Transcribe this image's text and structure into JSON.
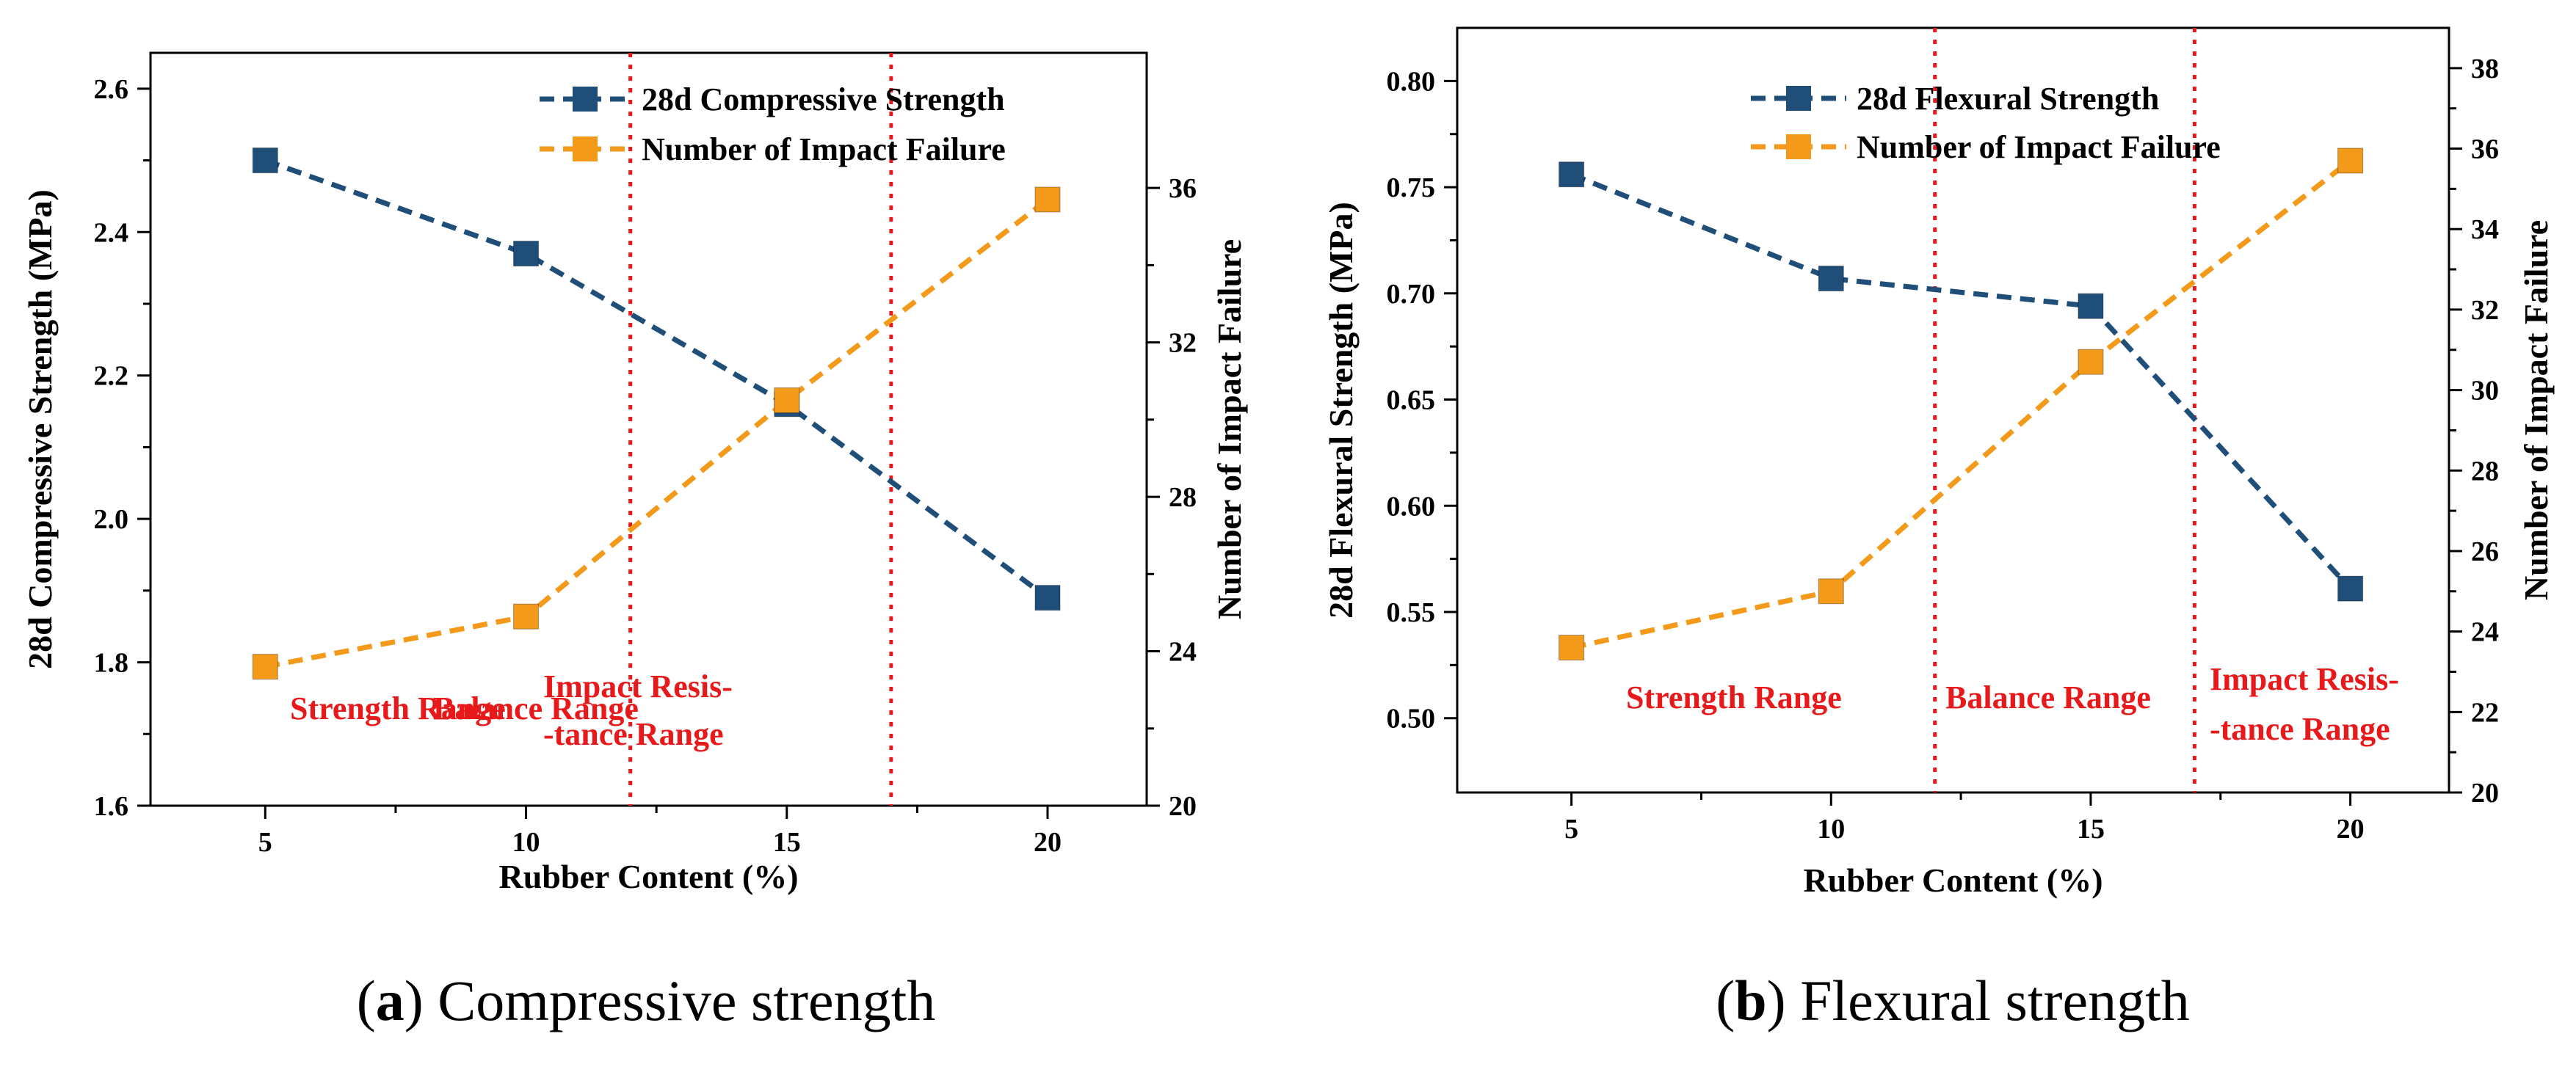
{
  "chart_data": [
    {
      "type": "line",
      "caption_letter": "a",
      "caption_text": "Compressive strength",
      "xlabel": "Rubber Content (%)",
      "ylabel_left": "28d Compressive Strength (MPa)",
      "ylabel_right": "Number of Impact Failure",
      "x": [
        5,
        10,
        15,
        20
      ],
      "xlim": [
        2.8,
        21.9
      ],
      "xticks": [
        5,
        10,
        15,
        20
      ],
      "ylim_left": [
        1.6,
        2.65
      ],
      "yticks_left": [
        "1.6",
        "1.8",
        "2.0",
        "2.2",
        "2.4",
        "2.6"
      ],
      "ylim_right": [
        20,
        39.5
      ],
      "yticks_right": [
        "20",
        "24",
        "28",
        "32",
        "36"
      ],
      "series": [
        {
          "name": "28d Compressive Strength",
          "axis": "left",
          "color": "#1f4e79",
          "values": [
            2.5,
            2.37,
            2.16,
            1.89
          ]
        },
        {
          "name": "Number of Impact Failure",
          "axis": "right",
          "color": "#f39a1b",
          "values": [
            23.6,
            24.9,
            30.5,
            35.7
          ]
        }
      ],
      "dividers_x": [
        12,
        17
      ],
      "ranges": [
        {
          "lines": [
            "Strength Range"
          ]
        },
        {
          "lines": [
            "Balance Range"
          ]
        },
        {
          "lines": [
            "Impact Resis-",
            "-tance Range"
          ]
        }
      ]
    },
    {
      "type": "line",
      "caption_letter": "b",
      "caption_text": "Flexural strength",
      "xlabel": "Rubber Content (%)",
      "ylabel_left": "28d Flexural Strength (MPa)",
      "ylabel_right": "Number of Impact Failure",
      "x": [
        5,
        10,
        15,
        20
      ],
      "xlim": [
        2.8,
        21.9
      ],
      "xticks": [
        5,
        10,
        15,
        20
      ],
      "ylim_left": [
        0.465,
        0.825
      ],
      "yticks_left": [
        "0.50",
        "0.55",
        "0.60",
        "0.65",
        "0.70",
        "0.75",
        "0.80"
      ],
      "ylim_right": [
        20,
        39
      ],
      "yticks_right": [
        "20",
        "22",
        "24",
        "26",
        "28",
        "30",
        "32",
        "34",
        "36",
        "38"
      ],
      "series": [
        {
          "name": "28d Flexural Strength",
          "axis": "left",
          "color": "#1f4e79",
          "values": [
            0.756,
            0.707,
            0.694,
            0.561
          ]
        },
        {
          "name": "Number of Impact Failure",
          "axis": "right",
          "color": "#f39a1b",
          "values": [
            23.6,
            25.0,
            30.7,
            35.7
          ]
        }
      ],
      "dividers_x": [
        12,
        17
      ],
      "ranges": [
        {
          "lines": [
            "Strength Range"
          ]
        },
        {
          "lines": [
            "Balance Range"
          ]
        },
        {
          "lines": [
            "Impact Resis-",
            "-tance Range"
          ]
        }
      ]
    }
  ]
}
